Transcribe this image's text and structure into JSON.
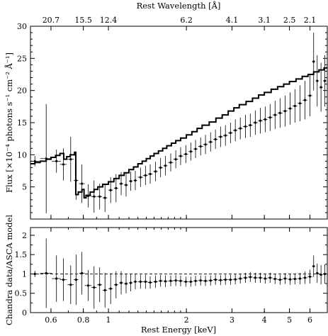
{
  "chart_data": [
    {
      "type": "scatter",
      "panel": "top",
      "xscale": "log",
      "xlim": [
        0.5,
        7.0
      ],
      "ylim": [
        0,
        30
      ],
      "ylabel": "Flux [×10⁻⁴ photons s⁻¹ cm⁻² Å⁻¹]",
      "top_axis_label": "Rest Wavelength [Å]",
      "top_ticks": [
        {
          "label": "20.7",
          "energy": 0.6
        },
        {
          "label": "15.5",
          "energy": 0.8
        },
        {
          "label": "12.4",
          "energy": 1.0
        },
        {
          "label": "6.2",
          "energy": 2.0
        },
        {
          "label": "4.1",
          "energy": 3.0
        },
        {
          "label": "3.1",
          "energy": 4.0
        },
        {
          "label": "2.5",
          "energy": 5.0
        },
        {
          "label": "2.1",
          "energy": 6.0
        }
      ],
      "yticks": [
        5,
        10,
        15,
        20,
        25,
        30
      ],
      "series": [
        {
          "kind": "data",
          "points": [
            [
              0.52,
              9.0,
              0.02,
              0.8
            ],
            [
              0.575,
              9.4,
              0.03,
              8.5
            ],
            [
              0.63,
              9.0,
              0.025,
              1.8
            ],
            [
              0.67,
              8.5,
              0.02,
              2.5
            ],
            [
              0.715,
              9.3,
              0.02,
              3.5
            ],
            [
              0.75,
              6.0,
              0.015,
              3.0
            ],
            [
              0.79,
              5.5,
              0.02,
              3.0
            ],
            [
              0.835,
              3.6,
              0.025,
              1.8
            ],
            [
              0.88,
              3.5,
              0.02,
              2.5
            ],
            [
              0.925,
              3.5,
              0.02,
              2.0
            ],
            [
              0.97,
              3.3,
              0.02,
              2.2
            ],
            [
              1.02,
              4.5,
              0.02,
              2.0
            ],
            [
              1.07,
              4.8,
              0.02,
              2.2
            ],
            [
              1.12,
              5.5,
              0.02,
              1.8
            ],
            [
              1.17,
              5.3,
              0.02,
              1.8
            ],
            [
              1.22,
              5.9,
              0.02,
              1.5
            ],
            [
              1.27,
              6.0,
              0.02,
              1.5
            ],
            [
              1.33,
              6.5,
              0.03,
              1.5
            ],
            [
              1.39,
              6.8,
              0.03,
              1.5
            ],
            [
              1.45,
              7.0,
              0.03,
              1.5
            ],
            [
              1.52,
              7.4,
              0.03,
              1.5
            ],
            [
              1.59,
              8.0,
              0.03,
              1.5
            ],
            [
              1.66,
              8.3,
              0.03,
              1.5
            ],
            [
              1.74,
              8.8,
              0.04,
              1.4
            ],
            [
              1.82,
              9.3,
              0.04,
              1.4
            ],
            [
              1.9,
              9.8,
              0.04,
              1.4
            ],
            [
              1.99,
              10.1,
              0.04,
              1.4
            ],
            [
              2.08,
              10.5,
              0.04,
              1.4
            ],
            [
              2.17,
              10.9,
              0.04,
              1.4
            ],
            [
              2.27,
              11.3,
              0.05,
              1.4
            ],
            [
              2.37,
              11.6,
              0.05,
              1.5
            ],
            [
              2.48,
              12.0,
              0.05,
              1.5
            ],
            [
              2.59,
              12.4,
              0.05,
              1.5
            ],
            [
              2.71,
              12.8,
              0.06,
              1.6
            ],
            [
              2.83,
              13.0,
              0.06,
              1.6
            ],
            [
              2.96,
              13.4,
              0.06,
              1.6
            ],
            [
              3.09,
              13.8,
              0.06,
              1.7
            ],
            [
              3.23,
              14.1,
              0.07,
              1.7
            ],
            [
              3.38,
              14.4,
              0.07,
              1.8
            ],
            [
              3.53,
              14.6,
              0.07,
              1.8
            ],
            [
              3.69,
              15.0,
              0.08,
              1.9
            ],
            [
              3.86,
              15.3,
              0.08,
              2.0
            ],
            [
              4.03,
              15.5,
              0.08,
              2.0
            ],
            [
              4.21,
              15.8,
              0.09,
              2.1
            ],
            [
              4.4,
              16.2,
              0.09,
              2.2
            ],
            [
              4.6,
              16.5,
              0.1,
              2.3
            ],
            [
              4.81,
              16.8,
              0.1,
              2.4
            ],
            [
              5.03,
              17.2,
              0.1,
              2.5
            ],
            [
              5.25,
              17.6,
              0.11,
              2.6
            ],
            [
              5.49,
              18.0,
              0.11,
              2.8
            ],
            [
              5.74,
              18.5,
              0.12,
              3.0
            ],
            [
              6.0,
              19.2,
              0.12,
              3.2
            ],
            [
              6.2,
              24.5,
              0.08,
              4.5
            ],
            [
              6.4,
              21.5,
              0.08,
              4.0
            ],
            [
              6.62,
              20.5,
              0.1,
              3.8
            ],
            [
              6.85,
              21.5,
              0.1,
              4.0
            ]
          ]
        },
        {
          "kind": "model",
          "steps": [
            [
              0.5,
              8.6
            ],
            [
              0.52,
              8.8
            ],
            [
              0.545,
              9.0
            ],
            [
              0.575,
              9.3
            ],
            [
              0.6,
              9.6
            ],
            [
              0.625,
              9.9
            ],
            [
              0.65,
              10.2
            ],
            [
              0.672,
              9.3
            ],
            [
              0.69,
              9.7
            ],
            [
              0.712,
              10.0
            ],
            [
              0.74,
              10.4
            ],
            [
              0.748,
              3.8
            ],
            [
              0.765,
              4.2
            ],
            [
              0.79,
              4.6
            ],
            [
              0.805,
              3.3
            ],
            [
              0.82,
              3.7
            ],
            [
              0.85,
              4.2
            ],
            [
              0.88,
              4.6
            ],
            [
              0.91,
              5.0
            ],
            [
              0.95,
              5.4
            ],
            [
              1.0,
              5.8
            ],
            [
              1.05,
              6.3
            ],
            [
              1.1,
              6.8
            ],
            [
              1.15,
              7.2
            ],
            [
              1.2,
              7.7
            ],
            [
              1.25,
              8.1
            ],
            [
              1.3,
              8.6
            ],
            [
              1.35,
              9.0
            ],
            [
              1.4,
              9.4
            ],
            [
              1.45,
              9.8
            ],
            [
              1.5,
              10.2
            ],
            [
              1.56,
              10.6
            ],
            [
              1.62,
              11.0
            ],
            [
              1.68,
              11.4
            ],
            [
              1.75,
              11.8
            ],
            [
              1.82,
              12.2
            ],
            [
              1.9,
              12.6
            ],
            [
              2.0,
              13.1
            ],
            [
              2.1,
              13.6
            ],
            [
              2.2,
              14.1
            ],
            [
              2.3,
              14.6
            ],
            [
              2.45,
              15.1
            ],
            [
              2.6,
              15.7
            ],
            [
              2.75,
              16.2
            ],
            [
              2.9,
              16.8
            ],
            [
              3.05,
              17.3
            ],
            [
              3.2,
              17.8
            ],
            [
              3.4,
              18.3
            ],
            [
              3.6,
              18.8
            ],
            [
              3.8,
              19.3
            ],
            [
              4.0,
              19.7
            ],
            [
              4.25,
              20.2
            ],
            [
              4.5,
              20.6
            ],
            [
              4.75,
              21.0
            ],
            [
              5.0,
              21.4
            ],
            [
              5.3,
              21.8
            ],
            [
              5.6,
              22.2
            ],
            [
              5.9,
              22.5
            ],
            [
              6.2,
              22.9
            ],
            [
              6.5,
              23.2
            ],
            [
              6.8,
              23.5
            ],
            [
              7.0,
              23.7
            ]
          ]
        }
      ]
    },
    {
      "type": "scatter",
      "panel": "bottom",
      "xscale": "log",
      "xlim": [
        0.5,
        7.0
      ],
      "ylim": [
        0,
        2.2
      ],
      "xlabel": "Rest Energy [keV]",
      "ylabel": "Chandra data/ASCA model",
      "xticks": [
        0.6,
        0.8,
        1,
        2,
        3,
        4,
        5,
        6
      ],
      "xtick_labels": [
        "0.6",
        "0.8",
        "1",
        "2",
        "3",
        "4",
        "5",
        "6"
      ],
      "yticks": [
        0,
        0.5,
        1,
        1.5,
        2
      ],
      "ytick_labels": [
        "0",
        "0.5",
        "1",
        "1.5",
        "2"
      ],
      "reference_line": 1.0,
      "points": [
        [
          0.52,
          1.0,
          0.02,
          0.08
        ],
        [
          0.575,
          1.02,
          0.03,
          0.9
        ],
        [
          0.63,
          0.88,
          0.025,
          0.6
        ],
        [
          0.67,
          0.85,
          0.02,
          0.55
        ],
        [
          0.715,
          0.72,
          0.02,
          0.5
        ],
        [
          0.75,
          0.85,
          0.015,
          0.65
        ],
        [
          0.79,
          1.02,
          0.02,
          0.55
        ],
        [
          0.835,
          0.7,
          0.025,
          0.4
        ],
        [
          0.88,
          0.65,
          0.02,
          0.55
        ],
        [
          0.925,
          0.72,
          0.02,
          0.45
        ],
        [
          0.97,
          0.58,
          0.02,
          0.45
        ],
        [
          1.02,
          0.62,
          0.02,
          0.4
        ],
        [
          1.07,
          0.72,
          0.02,
          0.35
        ],
        [
          1.12,
          0.77,
          0.02,
          0.3
        ],
        [
          1.17,
          0.75,
          0.02,
          0.25
        ],
        [
          1.22,
          0.77,
          0.02,
          0.22
        ],
        [
          1.27,
          0.8,
          0.02,
          0.2
        ],
        [
          1.33,
          0.8,
          0.03,
          0.18
        ],
        [
          1.39,
          0.8,
          0.03,
          0.18
        ],
        [
          1.45,
          0.78,
          0.03,
          0.16
        ],
        [
          1.52,
          0.8,
          0.03,
          0.16
        ],
        [
          1.59,
          0.82,
          0.03,
          0.15
        ],
        [
          1.66,
          0.81,
          0.03,
          0.15
        ],
        [
          1.74,
          0.82,
          0.04,
          0.14
        ],
        [
          1.82,
          0.83,
          0.04,
          0.14
        ],
        [
          1.9,
          0.82,
          0.04,
          0.14
        ],
        [
          1.99,
          0.8,
          0.04,
          0.13
        ],
        [
          2.08,
          0.8,
          0.04,
          0.13
        ],
        [
          2.17,
          0.82,
          0.04,
          0.13
        ],
        [
          2.27,
          0.83,
          0.05,
          0.13
        ],
        [
          2.37,
          0.82,
          0.05,
          0.13
        ],
        [
          2.48,
          0.83,
          0.05,
          0.13
        ],
        [
          2.59,
          0.85,
          0.05,
          0.13
        ],
        [
          2.71,
          0.84,
          0.06,
          0.13
        ],
        [
          2.83,
          0.85,
          0.06,
          0.13
        ],
        [
          2.96,
          0.85,
          0.06,
          0.13
        ],
        [
          3.09,
          0.86,
          0.06,
          0.13
        ],
        [
          3.23,
          0.88,
          0.07,
          0.13
        ],
        [
          3.38,
          0.9,
          0.07,
          0.13
        ],
        [
          3.53,
          0.92,
          0.07,
          0.13
        ],
        [
          3.69,
          0.9,
          0.08,
          0.13
        ],
        [
          3.86,
          0.9,
          0.08,
          0.13
        ],
        [
          4.03,
          0.88,
          0.08,
          0.13
        ],
        [
          4.21,
          0.9,
          0.09,
          0.13
        ],
        [
          4.4,
          0.87,
          0.09,
          0.13
        ],
        [
          4.6,
          0.85,
          0.1,
          0.13
        ],
        [
          4.81,
          0.88,
          0.1,
          0.14
        ],
        [
          5.03,
          0.86,
          0.1,
          0.14
        ],
        [
          5.25,
          0.87,
          0.11,
          0.14
        ],
        [
          5.49,
          0.88,
          0.11,
          0.15
        ],
        [
          5.74,
          0.9,
          0.12,
          0.16
        ],
        [
          6.0,
          0.93,
          0.12,
          0.18
        ],
        [
          6.2,
          1.2,
          0.08,
          0.28
        ],
        [
          6.4,
          1.02,
          0.08,
          0.25
        ],
        [
          6.62,
          0.98,
          0.1,
          0.25
        ],
        [
          6.85,
          1.0,
          0.1,
          0.25
        ]
      ]
    }
  ]
}
